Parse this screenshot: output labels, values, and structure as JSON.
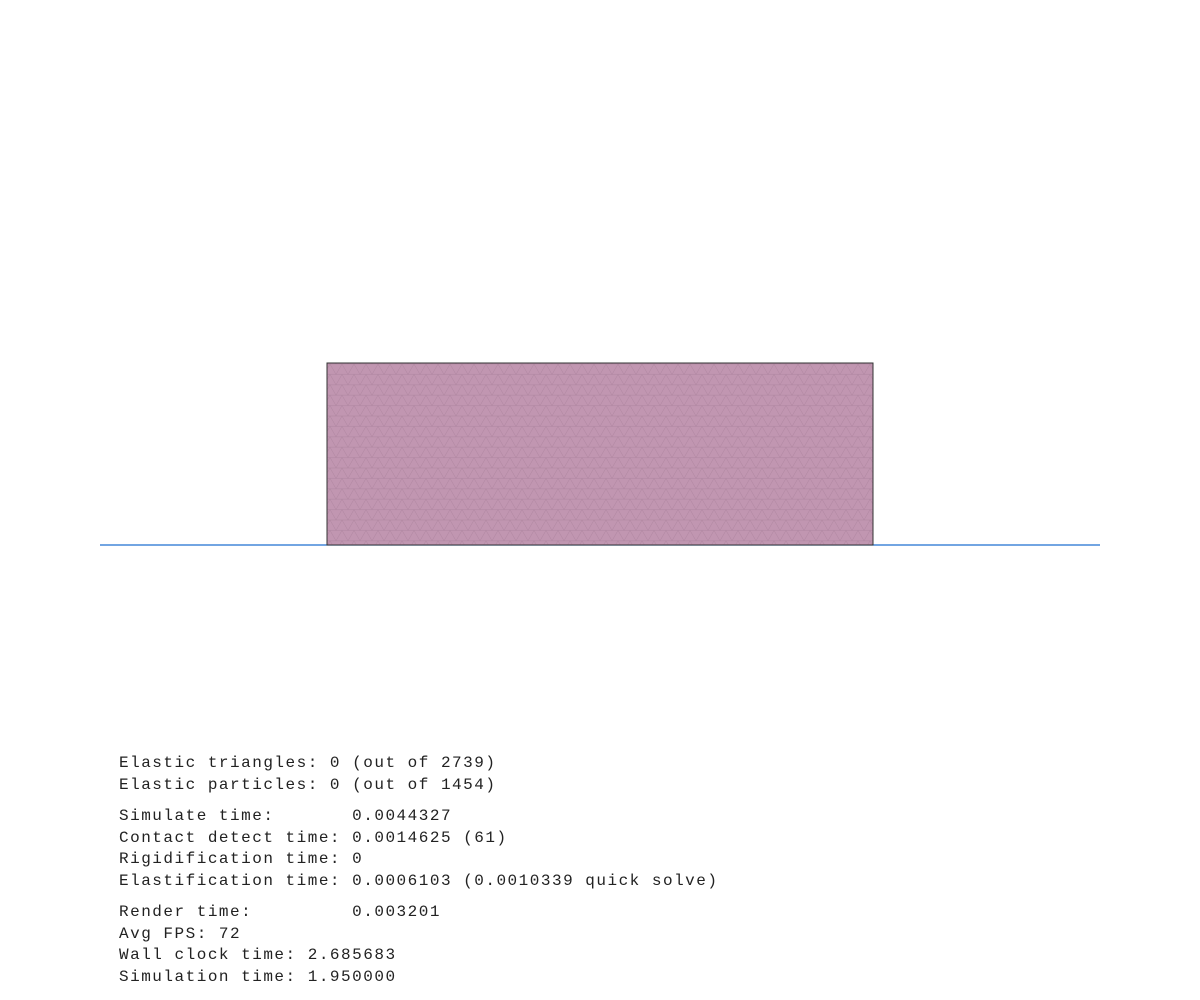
{
  "stats": [
    [
      "Elastic triangles: 0 (out of 2739)",
      "Elastic particles: 0 (out of 1454)"
    ],
    [
      "Simulate time:       0.0044327",
      "Contact detect time: 0.0014625 (61)",
      "Rigidification time: 0",
      "Elastification time: 0.0006103 (0.0010339 quick solve)"
    ],
    [
      "Render time:         0.003201",
      "Avg FPS: 72",
      "Wall clock time: 2.685683",
      "Simulation time: 1.950000"
    ]
  ]
}
